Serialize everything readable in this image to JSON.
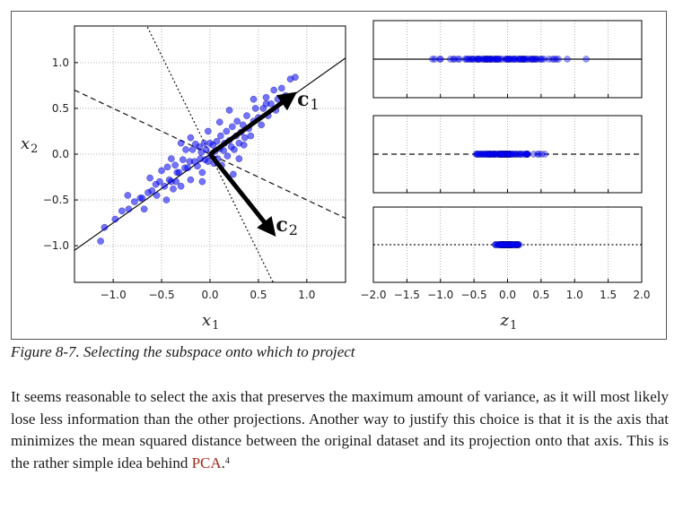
{
  "figure": {
    "caption": "Figure 8-7. Selecting the subspace onto which to project"
  },
  "chart_data": [
    {
      "type": "scatter",
      "title": "",
      "xlabel": "x",
      "xlabel_sub": "1",
      "ylabel": "x",
      "ylabel_sub": "2",
      "xlim": [
        -1.4,
        1.4
      ],
      "ylim": [
        -1.4,
        1.4
      ],
      "x_ticks": [
        "−1.0",
        "−0.5",
        "0.0",
        "0.5",
        "1.0"
      ],
      "y_ticks": [
        "1.0",
        "0.5",
        "0.0",
        "−0.5",
        "−1.0"
      ],
      "grid": true,
      "point_color": "#0000ff",
      "vector_labels": {
        "c1": "c",
        "c1_sub": "1",
        "c2": "c",
        "c2_sub": "2"
      },
      "lines": [
        {
          "style": "solid",
          "slope": 0.75,
          "intercept": 0.0
        },
        {
          "style": "dashed",
          "slope": -0.5,
          "intercept": 0.0
        },
        {
          "style": "dotted",
          "slope": -2.15,
          "intercept": 0.0
        }
      ],
      "vectors": [
        {
          "from": [
            0,
            0
          ],
          "to": [
            0.82,
            0.62
          ]
        },
        {
          "from": [
            0,
            0
          ],
          "to": [
            0.62,
            -0.82
          ]
        }
      ],
      "points": [
        [
          -1.13,
          -0.95
        ],
        [
          -1.09,
          -0.8
        ],
        [
          -0.98,
          -0.71
        ],
        [
          -0.91,
          -0.62
        ],
        [
          -0.84,
          -0.6
        ],
        [
          -0.78,
          -0.52
        ],
        [
          -0.72,
          -0.48
        ],
        [
          -0.68,
          -0.6
        ],
        [
          -0.64,
          -0.42
        ],
        [
          -0.6,
          -0.4
        ],
        [
          -0.56,
          -0.33
        ],
        [
          -0.52,
          -0.3
        ],
        [
          -0.5,
          -0.18
        ],
        [
          -0.47,
          -0.35
        ],
        [
          -0.44,
          -0.14
        ],
        [
          -0.42,
          -0.28
        ],
        [
          -0.4,
          -0.3
        ],
        [
          -0.38,
          -0.38
        ],
        [
          -0.36,
          -0.12
        ],
        [
          -0.34,
          -0.2
        ],
        [
          -0.32,
          -0.2
        ],
        [
          -0.3,
          -0.35
        ],
        [
          -0.28,
          -0.06
        ],
        [
          -0.26,
          -0.15
        ],
        [
          -0.25,
          0.05
        ],
        [
          -0.23,
          -0.15
        ],
        [
          -0.21,
          -0.08
        ],
        [
          -0.2,
          -0.28
        ],
        [
          -0.18,
          0.05
        ],
        [
          -0.16,
          -0.08
        ],
        [
          -0.15,
          0.11
        ],
        [
          -0.13,
          -0.13
        ],
        [
          -0.11,
          0.08
        ],
        [
          -0.1,
          -0.05
        ],
        [
          -0.09,
          0.02
        ],
        [
          -0.08,
          -0.2
        ],
        [
          -0.06,
          0.12
        ],
        [
          -0.05,
          -0.06
        ],
        [
          -0.04,
          0.05
        ],
        [
          -0.02,
          -0.08
        ],
        [
          0.0,
          0.12
        ],
        [
          0.01,
          -0.02
        ],
        [
          0.03,
          0.1
        ],
        [
          0.04,
          -0.1
        ],
        [
          0.05,
          0.03
        ],
        [
          0.07,
          0.14
        ],
        [
          0.08,
          -0.05
        ],
        [
          0.1,
          0.06
        ],
        [
          0.11,
          0.2
        ],
        [
          0.12,
          -0.12
        ],
        [
          0.14,
          0.04
        ],
        [
          0.15,
          0.12
        ],
        [
          0.17,
          0.25
        ],
        [
          0.18,
          -0.02
        ],
        [
          0.2,
          0.15
        ],
        [
          0.22,
          0.08
        ],
        [
          0.23,
          0.3
        ],
        [
          0.25,
          0.05
        ],
        [
          0.27,
          0.2
        ],
        [
          0.28,
          0.36
        ],
        [
          0.3,
          0.12
        ],
        [
          0.32,
          0.24
        ],
        [
          0.34,
          0.32
        ],
        [
          0.36,
          0.18
        ],
        [
          0.38,
          0.42
        ],
        [
          0.4,
          0.28
        ],
        [
          0.42,
          0.2
        ],
        [
          0.45,
          0.36
        ],
        [
          0.47,
          0.5
        ],
        [
          0.5,
          0.4
        ],
        [
          0.53,
          0.32
        ],
        [
          0.55,
          0.5
        ],
        [
          0.58,
          0.62
        ],
        [
          0.6,
          0.42
        ],
        [
          0.63,
          0.55
        ],
        [
          0.66,
          0.7
        ],
        [
          0.7,
          0.6
        ],
        [
          0.74,
          0.72
        ],
        [
          0.78,
          0.64
        ],
        [
          0.83,
          0.82
        ],
        [
          0.88,
          0.84
        ],
        [
          -0.7,
          -0.48
        ],
        [
          -0.62,
          -0.26
        ],
        [
          -0.45,
          -0.5
        ],
        [
          -0.35,
          -0.3
        ],
        [
          -0.55,
          -0.45
        ],
        [
          -0.08,
          -0.3
        ],
        [
          0.24,
          -0.22
        ],
        [
          0.35,
          0.1
        ],
        [
          0.58,
          0.55
        ],
        [
          0.1,
          0.35
        ],
        [
          -0.2,
          0.18
        ],
        [
          0.45,
          0.6
        ],
        [
          0.68,
          0.48
        ],
        [
          -0.85,
          -0.45
        ],
        [
          -0.3,
          0.12
        ],
        [
          0.2,
          0.48
        ],
        [
          -0.02,
          0.25
        ],
        [
          -0.4,
          -0.05
        ],
        [
          0.3,
          -0.05
        ]
      ]
    },
    {
      "type": "scatter",
      "title": "",
      "xlabel": "z",
      "xlabel_sub": "1",
      "xlim": [
        -2.0,
        2.0
      ],
      "x_ticks": [
        "−2.0",
        "−1.5",
        "−1.0",
        "−0.5",
        "0.0",
        "0.5",
        "1.0",
        "1.5",
        "2.0"
      ],
      "grid": true,
      "point_color": "#0000ff",
      "panels": [
        {
          "line_style": "solid",
          "range": [
            -1.4,
            1.4
          ]
        },
        {
          "line_style": "dashed",
          "range": [
            -0.7,
            0.7
          ]
        },
        {
          "line_style": "dotted",
          "range": [
            -0.25,
            0.25
          ]
        }
      ]
    }
  ],
  "text": {
    "paragraph_before_link": "It seems reasonable to select the axis that preserves the maximum amount of variance, as it will most likely lose less information than the other projections. Another way to justify this choice is that it is the axis that minimizes the mean squared distance between the original dataset and its projection onto that axis. This is the rather simple idea behind ",
    "link_text": "PCA",
    "after_link": ".",
    "footnote_mark": "4"
  }
}
